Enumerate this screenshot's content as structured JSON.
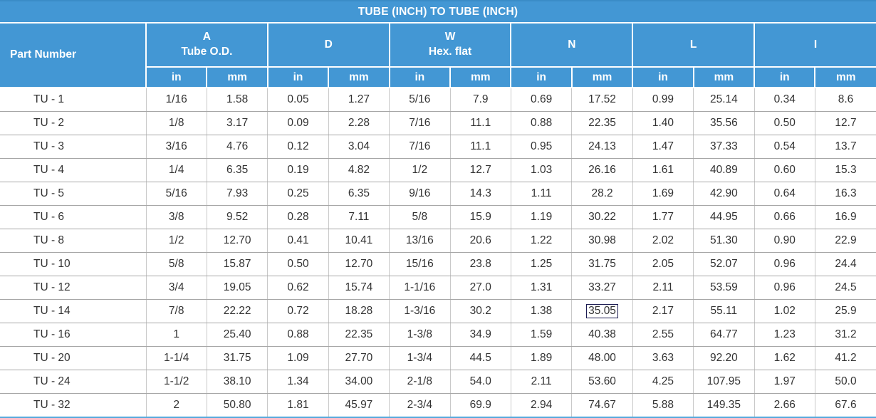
{
  "title": "TUBE (INCH) TO TUBE (INCH)",
  "columns": {
    "part_number": "Part Number",
    "groups": [
      {
        "line1": "A",
        "line2": "Tube O.D."
      },
      {
        "line1": "D",
        "line2": ""
      },
      {
        "line1": "W",
        "line2": "Hex. flat"
      },
      {
        "line1": "N",
        "line2": ""
      },
      {
        "line1": "L",
        "line2": ""
      },
      {
        "line1": "I",
        "line2": ""
      }
    ],
    "units": [
      "in",
      "mm"
    ]
  },
  "rows": [
    {
      "part_number": "TU - 1",
      "values": [
        "1/16",
        "1.58",
        "0.05",
        "1.27",
        "5/16",
        "7.9",
        "0.69",
        "17.52",
        "0.99",
        "25.14",
        "0.34",
        "8.6"
      ]
    },
    {
      "part_number": "TU - 2",
      "values": [
        "1/8",
        "3.17",
        "0.09",
        "2.28",
        "7/16",
        "11.1",
        "0.88",
        "22.35",
        "1.40",
        "35.56",
        "0.50",
        "12.7"
      ]
    },
    {
      "part_number": "TU - 3",
      "values": [
        "3/16",
        "4.76",
        "0.12",
        "3.04",
        "7/16",
        "11.1",
        "0.95",
        "24.13",
        "1.47",
        "37.33",
        "0.54",
        "13.7"
      ]
    },
    {
      "part_number": "TU - 4",
      "values": [
        "1/4",
        "6.35",
        "0.19",
        "4.82",
        "1/2",
        "12.7",
        "1.03",
        "26.16",
        "1.61",
        "40.89",
        "0.60",
        "15.3"
      ]
    },
    {
      "part_number": "TU - 5",
      "values": [
        "5/16",
        "7.93",
        "0.25",
        "6.35",
        "9/16",
        "14.3",
        "1.11",
        "28.2",
        "1.69",
        "42.90",
        "0.64",
        "16.3"
      ]
    },
    {
      "part_number": "TU - 6",
      "values": [
        "3/8",
        "9.52",
        "0.28",
        "7.11",
        "5/8",
        "15.9",
        "1.19",
        "30.22",
        "1.77",
        "44.95",
        "0.66",
        "16.9"
      ]
    },
    {
      "part_number": "TU - 8",
      "values": [
        "1/2",
        "12.70",
        "0.41",
        "10.41",
        "13/16",
        "20.6",
        "1.22",
        "30.98",
        "2.02",
        "51.30",
        "0.90",
        "22.9"
      ]
    },
    {
      "part_number": "TU - 10",
      "values": [
        "5/8",
        "15.87",
        "0.50",
        "12.70",
        "15/16",
        "23.8",
        "1.25",
        "31.75",
        "2.05",
        "52.07",
        "0.96",
        "24.4"
      ]
    },
    {
      "part_number": "TU - 12",
      "values": [
        "3/4",
        "19.05",
        "0.62",
        "15.74",
        "1-1/16",
        "27.0",
        "1.31",
        "33.27",
        "2.11",
        "53.59",
        "0.96",
        "24.5"
      ]
    },
    {
      "part_number": "TU - 14",
      "values": [
        "7/8",
        "22.22",
        "0.72",
        "18.28",
        "1-3/16",
        "30.2",
        "1.38",
        "35.05",
        "2.17",
        "55.11",
        "1.02",
        "25.9"
      ]
    },
    {
      "part_number": "TU - 16",
      "values": [
        "1",
        "25.40",
        "0.88",
        "22.35",
        "1-3/8",
        "34.9",
        "1.59",
        "40.38",
        "2.55",
        "64.77",
        "1.23",
        "31.2"
      ]
    },
    {
      "part_number": "TU - 20",
      "values": [
        "1-1/4",
        "31.75",
        "1.09",
        "27.70",
        "1-3/4",
        "44.5",
        "1.89",
        "48.00",
        "3.63",
        "92.20",
        "1.62",
        "41.2"
      ]
    },
    {
      "part_number": "TU - 24",
      "values": [
        "1-1/2",
        "38.10",
        "1.34",
        "34.00",
        "2-1/8",
        "54.0",
        "2.11",
        "53.60",
        "4.25",
        "107.95",
        "1.97",
        "50.0"
      ]
    },
    {
      "part_number": "TU - 32",
      "values": [
        "2",
        "50.80",
        "1.81",
        "45.97",
        "2-3/4",
        "69.9",
        "2.94",
        "74.67",
        "5.88",
        "149.35",
        "2.66",
        "67.6"
      ]
    }
  ],
  "highlighted_cell": {
    "row_part_number": "TU - 14",
    "value_index": 7,
    "value": "35.05"
  },
  "colors": {
    "header_blue": "#4397d4",
    "header_text": "#ffffff",
    "body_text": "#333333",
    "grid_horizontal": "#a6a6a6",
    "grid_vertical": "#c9c9c9",
    "bottom_border_blue": "#54a9dd",
    "highlight_box": "#1c1c52"
  }
}
